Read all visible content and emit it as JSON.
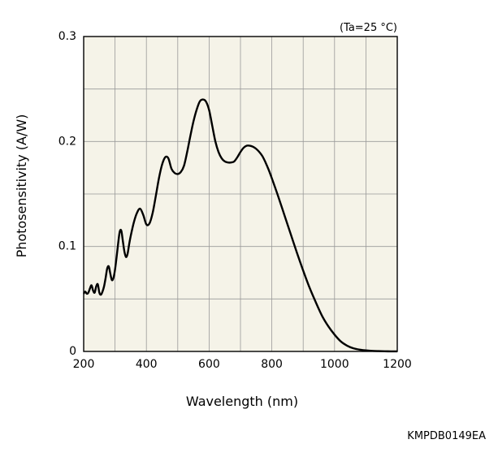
{
  "chart_data": {
    "type": "line",
    "annotation": "(Ta=25 °C)",
    "xlabel": "Wavelength (nm)",
    "ylabel": "Photosensitivity (A/W)",
    "xlim": [
      200,
      1200
    ],
    "ylim": [
      0,
      0.3
    ],
    "x_ticks": [
      200,
      400,
      600,
      800,
      1000,
      1200
    ],
    "x_tick_labels": [
      "200",
      "400",
      "600",
      "800",
      "1000",
      "1200"
    ],
    "y_ticks": [
      0,
      0.1,
      0.2,
      0.3
    ],
    "y_tick_labels": [
      "0",
      "0.1",
      "0.2",
      "0.3"
    ],
    "x_grid_step": 100,
    "y_grid_step": 0.05,
    "grid": true,
    "background_color": "#f5f3e8",
    "grid_color": "#999999",
    "line_color": "#000000",
    "series": [
      {
        "x": [
          200,
          205,
          210,
          215,
          220,
          225,
          230,
          235,
          240,
          245,
          250,
          255,
          260,
          265,
          270,
          275,
          280,
          285,
          290,
          295,
          300,
          305,
          310,
          315,
          320,
          325,
          330,
          335,
          340,
          345,
          350,
          360,
          370,
          380,
          390,
          400,
          410,
          420,
          430,
          440,
          450,
          460,
          470,
          480,
          490,
          500,
          510,
          520,
          530,
          540,
          550,
          560,
          570,
          580,
          590,
          600,
          610,
          620,
          630,
          640,
          650,
          660,
          670,
          680,
          690,
          700,
          710,
          720,
          730,
          740,
          750,
          760,
          770,
          780,
          790,
          800,
          820,
          840,
          860,
          880,
          900,
          920,
          940,
          960,
          980,
          1000,
          1020,
          1040,
          1060,
          1080,
          1100,
          1120,
          1140,
          1160,
          1180,
          1200
        ],
        "y": [
          0.055,
          0.057,
          0.055,
          0.056,
          0.06,
          0.063,
          0.058,
          0.056,
          0.062,
          0.064,
          0.056,
          0.054,
          0.057,
          0.062,
          0.07,
          0.079,
          0.081,
          0.074,
          0.068,
          0.07,
          0.078,
          0.09,
          0.103,
          0.114,
          0.115,
          0.105,
          0.095,
          0.09,
          0.093,
          0.102,
          0.11,
          0.123,
          0.132,
          0.136,
          0.13,
          0.121,
          0.122,
          0.132,
          0.148,
          0.165,
          0.178,
          0.185,
          0.184,
          0.174,
          0.17,
          0.169,
          0.171,
          0.177,
          0.19,
          0.205,
          0.219,
          0.23,
          0.238,
          0.24,
          0.238,
          0.23,
          0.215,
          0.2,
          0.19,
          0.184,
          0.181,
          0.18,
          0.18,
          0.181,
          0.185,
          0.19,
          0.194,
          0.196,
          0.196,
          0.195,
          0.193,
          0.19,
          0.186,
          0.18,
          0.173,
          0.165,
          0.148,
          0.13,
          0.112,
          0.094,
          0.077,
          0.061,
          0.047,
          0.034,
          0.024,
          0.016,
          0.0095,
          0.0055,
          0.003,
          0.0017,
          0.001,
          0.0005,
          0.0003,
          0.00015,
          7e-05,
          3e-05
        ]
      }
    ]
  },
  "figure_code": "KMPDB0149EA"
}
